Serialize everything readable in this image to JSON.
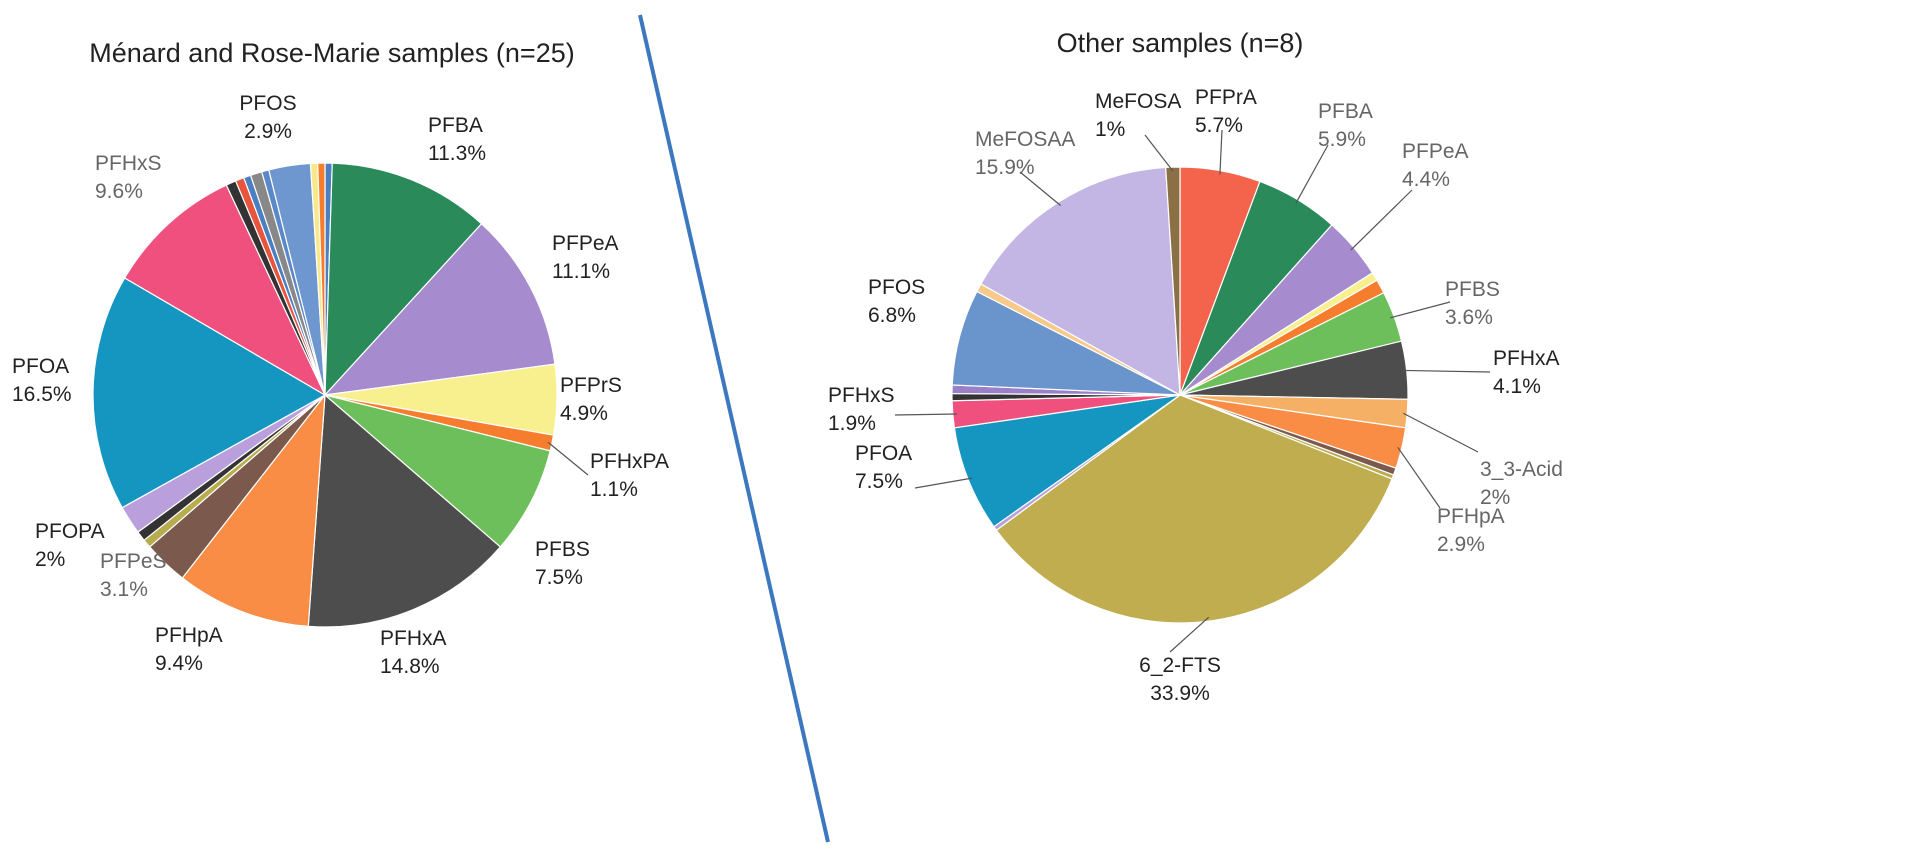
{
  "chart_data": [
    {
      "type": "pie",
      "title": "Ménard and Rose-Marie samples (n=25)",
      "categories": [
        null,
        "PFBA",
        "PFPeA",
        "PFPrS",
        "PFHxPA",
        "PFBS",
        "PFHxA",
        "PFHpA",
        "PFPeS",
        null,
        null,
        "PFOPA",
        "PFOA",
        "PFHxS",
        null,
        null,
        null,
        null,
        null,
        "PFOS",
        null,
        null
      ],
      "values": [
        0.5,
        11.3,
        11.1,
        4.9,
        1.1,
        7.5,
        14.8,
        9.4,
        3.1,
        0.6,
        0.7,
        2,
        16.5,
        9.6,
        0.7,
        0.6,
        0.5,
        0.8,
        0.5,
        2.9,
        0.5,
        0.5
      ],
      "value_labels": [
        null,
        "11.3%",
        "11.1%",
        "4.9%",
        "1.1%",
        "7.5%",
        "14.8%",
        "9.4%",
        "3.1%",
        null,
        null,
        "2%",
        "16.5%",
        "9.6%",
        null,
        null,
        null,
        null,
        null,
        "2.9%",
        null,
        null
      ],
      "colors": [
        "#4a7fc1",
        "#2a8a5a",
        "#a68bcf",
        "#f8f08e",
        "#f77d2e",
        "#6cbf5a",
        "#4d4d4d",
        "#f98d46",
        "#7b5a4d",
        "#b7ac4e",
        "#333333",
        "#b9a0dc",
        "#1596c0",
        "#f0507e",
        "#333333",
        "#e8553f",
        "#4a7fc1",
        "#888888",
        "#5b88c9",
        "#6f97cf",
        "#f7e98a",
        "#f77d2e"
      ]
    },
    {
      "type": "pie",
      "title": "Other samples  (n=8)",
      "categories": [
        "PFPrA",
        "PFBA",
        "PFPeA",
        null,
        null,
        "PFBS",
        "PFHxA",
        "3_3-Acid",
        "PFHpA",
        null,
        null,
        "6_2-FTS",
        null,
        "PFOA",
        "PFHxS",
        null,
        null,
        "PFOS",
        null,
        "MeFOSAA",
        "MeFOSA"
      ],
      "values": [
        5.7,
        5.9,
        4.4,
        0.6,
        1.0,
        3.6,
        4.1,
        2,
        2.9,
        0.5,
        0.3,
        33.9,
        0.3,
        7.5,
        1.9,
        0.5,
        0.6,
        6.8,
        0.6,
        15.9,
        1
      ],
      "value_labels": [
        "5.7%",
        "5.9%",
        "4.4%",
        null,
        null,
        "3.6%",
        "4.1%",
        "2%",
        "2.9%",
        null,
        null,
        "33.9%",
        null,
        "7.5%",
        "1.9%",
        null,
        null,
        "6.8%",
        null,
        "15.9%",
        "1%"
      ],
      "colors": [
        "#f4644c",
        "#2a8a5a",
        "#a68bcf",
        "#f8f08e",
        "#f77d2e",
        "#6cbf5a",
        "#4d4d4d",
        "#f5b066",
        "#f98d46",
        "#7b5a4d",
        "#b7ac4e",
        "#bfad4f",
        "#b9a0dc",
        "#1596c0",
        "#f0507e",
        "#333333",
        "#9a7fc9",
        "#6a94cc",
        "#f7c98a",
        "#c4b6e4",
        "#8b7046"
      ]
    }
  ]
}
